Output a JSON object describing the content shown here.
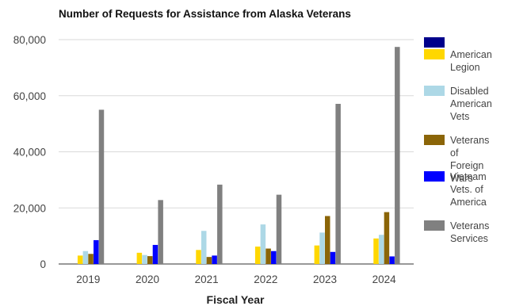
{
  "chart_data": {
    "type": "bar",
    "title": "Number of Requests for Assistance from Alaska Veterans",
    "xlabel": "Fiscal Year",
    "ylabel": "",
    "categories": [
      "2019",
      "2020",
      "2021",
      "2022",
      "2023",
      "2024"
    ],
    "ylim": [
      0,
      80000
    ],
    "yticks": [
      0,
      20000,
      40000,
      60000,
      80000
    ],
    "ytick_labels": [
      "0",
      "20,000",
      "40,000",
      "60,000",
      "80,000"
    ],
    "grid": true,
    "legend_position": "right",
    "series": [
      {
        "name": "",
        "color": "#00008b",
        "values": [
          0,
          0,
          0,
          0,
          0,
          0
        ]
      },
      {
        "name": "American Legion",
        "label_lines": "American\nLegion",
        "color": "#ffd700",
        "values": [
          3000,
          4000,
          5000,
          6200,
          6600,
          9100
        ]
      },
      {
        "name": "Disabled American Vets",
        "label_lines": "Disabled\nAmerican\nVets",
        "color": "#add8e6",
        "values": [
          4600,
          3200,
          11800,
          14100,
          11200,
          10400
        ]
      },
      {
        "name": "Veterans of Foreign Wars",
        "label_lines": "Veterans of\nForeign Wars",
        "color": "#8b6508",
        "values": [
          3600,
          2800,
          2500,
          5500,
          17100,
          18500
        ]
      },
      {
        "name": "Vietnam Vets. of America",
        "label_lines": "Vietnam\nVets. of\nAmerica",
        "color": "#0000ff",
        "values": [
          8500,
          6800,
          3000,
          4600,
          4300,
          2700
        ]
      },
      {
        "name": "Veterans Services",
        "label_lines": "Veterans\nServices",
        "color": "#808080",
        "values": [
          55000,
          22800,
          28300,
          24700,
          57100,
          77400
        ]
      }
    ]
  }
}
